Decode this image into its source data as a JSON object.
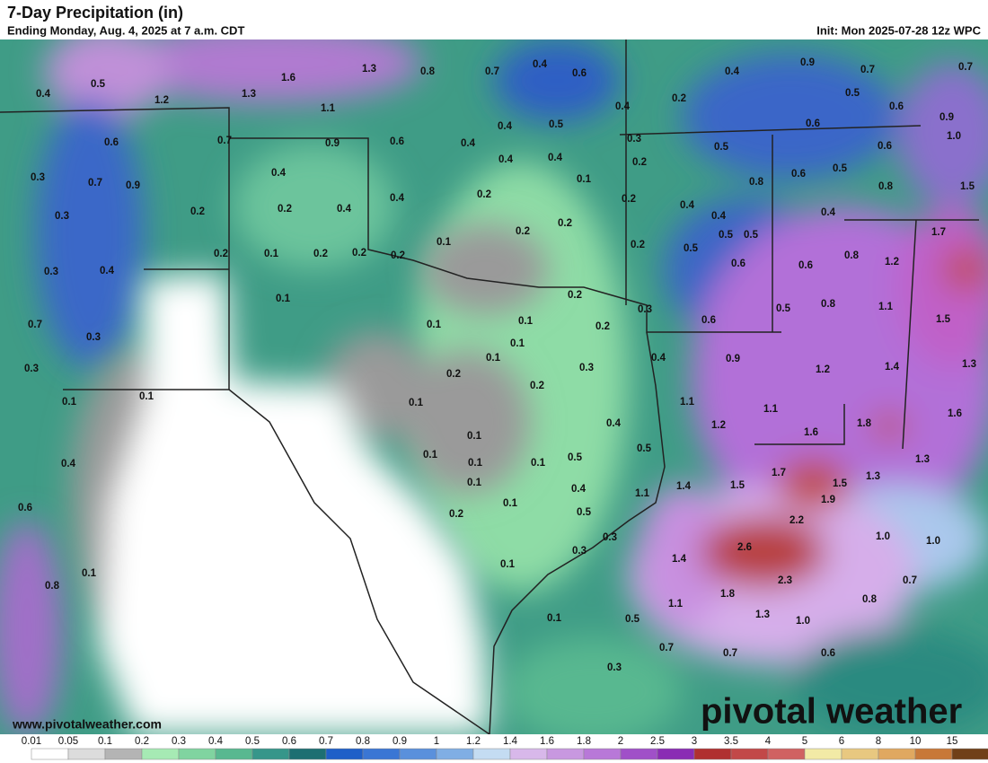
{
  "header": {
    "title": "7-Day Precipitation (in)",
    "subtitle": "Ending Monday, Aug. 4, 2025 at 7 a.m. CDT",
    "init": "Init: Mon 2025-07-28 12z WPC"
  },
  "map": {
    "labels": [
      "1.6",
      "1.3",
      "1.3",
      "0.8",
      "0.7",
      "0.4",
      "0.6",
      "0.4",
      "0.9",
      "0.7",
      "0.7",
      "0.4",
      "0.5",
      "1.2",
      "1.1",
      "0.5",
      "0.6",
      "0.2",
      "0.4",
      "0.9",
      "0.7",
      "0.9",
      "0.6",
      "0.4",
      "0.4",
      "0.5",
      "0.4",
      "0.4",
      "0.3",
      "0.5",
      "0.6",
      "0.6",
      "1.0",
      "0.6",
      "0.3",
      "0.7",
      "0.9",
      "0.4",
      "0.2",
      "0.1",
      "0.8",
      "0.6",
      "0.5",
      "0.8",
      "1.5",
      "0.3",
      "0.2",
      "0.2",
      "0.4",
      "0.4",
      "0.2",
      "0.2",
      "0.4",
      "0.4",
      "0.4",
      "0.2",
      "0.2",
      "0.1",
      "0.2",
      "0.5",
      "0.5",
      "0.5",
      "1.7",
      "0.3",
      "0.4",
      "0.2",
      "0.1",
      "0.2",
      "0.2",
      "0.2",
      "0.6",
      "0.6",
      "0.8",
      "1.2",
      "0.1",
      "0.2",
      "0.3",
      "0.6",
      "0.5",
      "0.8",
      "1.1",
      "1.5",
      "0.7",
      "0.3",
      "0.1",
      "0.1",
      "0.2",
      "0.1",
      "0.1",
      "0.3",
      "0.4",
      "0.9",
      "1.2",
      "1.4",
      "1.3",
      "0.2",
      "0.2",
      "0.3",
      "0.1",
      "0.1",
      "0.1",
      "1.1",
      "1.1",
      "0.4",
      "0.1",
      "1.2",
      "1.6",
      "1.8",
      "1.6",
      "0.5",
      "0.1",
      "0.1",
      "0.1",
      "0.5",
      "0.4",
      "1.7",
      "1.3",
      "1.3",
      "0.1",
      "0.4",
      "1.1",
      "1.4",
      "1.5",
      "1.5",
      "1.9",
      "0.6",
      "0.1",
      "0.2",
      "0.5",
      "2.2",
      "0.3",
      "0.3",
      "1.0",
      "1.0",
      "2.6",
      "1.4",
      "0.1",
      "0.8",
      "0.1",
      "2.3",
      "0.7",
      "1.8",
      "0.8",
      "1.1",
      "0.1",
      "0.5",
      "1.3",
      "1.0",
      "0.7",
      "0.7",
      "0.6",
      "0.3"
    ]
  },
  "footer": {
    "website": "www.pivotalweather.com",
    "logo": "pivotal weather"
  },
  "legend": {
    "labels": [
      "0.01",
      "0.05",
      "0.1",
      "0.2",
      "0.3",
      "0.4",
      "0.5",
      "0.6",
      "0.7",
      "0.8",
      "0.9",
      "1",
      "1.2",
      "1.4",
      "1.6",
      "1.8",
      "2",
      "2.5",
      "3",
      "3.5",
      "4",
      "5",
      "6",
      "8",
      "10",
      "15"
    ],
    "colors": [
      "#ffffff",
      "#dcdcdc",
      "#b4b4b4",
      "#a6eab4",
      "#80d4a0",
      "#58b890",
      "#36968a",
      "#1d6f72",
      "#1e5fc8",
      "#3a76d4",
      "#5a90dc",
      "#80aee4",
      "#c4dcf2",
      "#d8b8ea",
      "#c898e0",
      "#b878d8",
      "#a050c8",
      "#8a2cb4",
      "#b03030",
      "#c24848",
      "#d06262",
      "#f2eaa6",
      "#e8c880",
      "#e0a860",
      "#c87838",
      "#704018"
    ]
  }
}
